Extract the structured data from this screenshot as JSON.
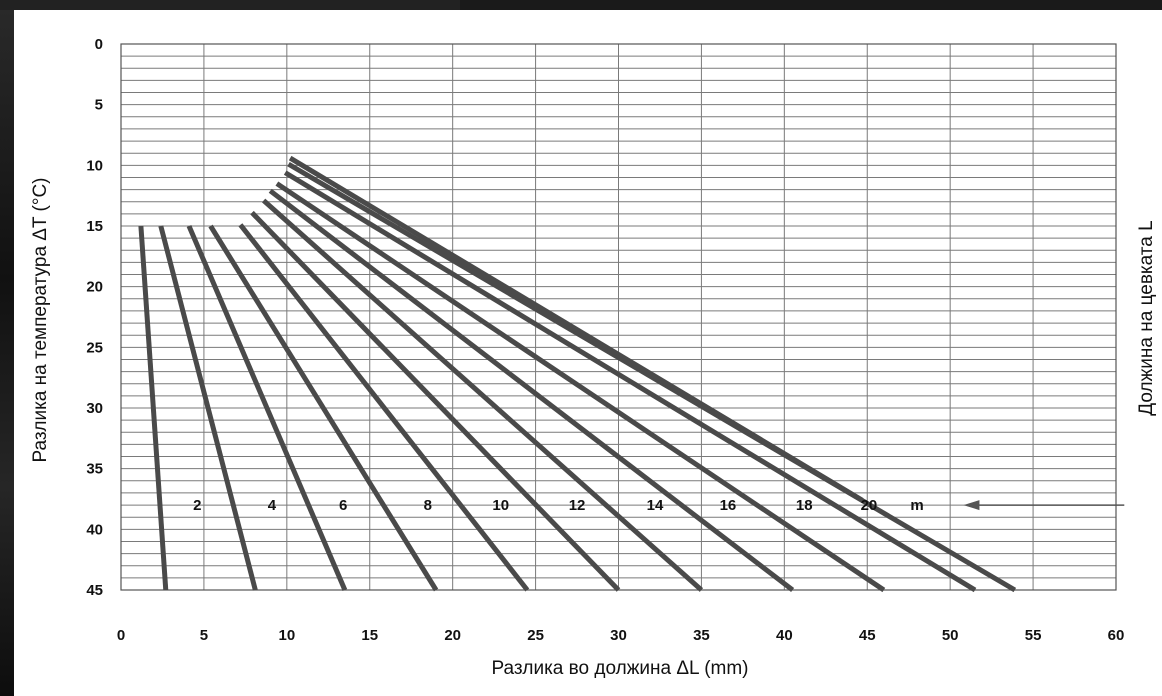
{
  "chart_data": {
    "type": "line",
    "xlabel": "Разлика во должина ΔL (mm)",
    "ylabel": "Разлика на температура ΔT (°C)",
    "right_label": "Должина на цевката L",
    "xlim": [
      0,
      60
    ],
    "ylim": [
      0,
      45
    ],
    "y_inverted": true,
    "x_ticks": [
      "0",
      "5",
      "10",
      "15",
      "20",
      "25",
      "30",
      "35",
      "40",
      "45",
      "50",
      "55",
      "60"
    ],
    "y_ticks": [
      "0",
      "5",
      "10",
      "15",
      "20",
      "25",
      "30",
      "35",
      "40",
      "45"
    ],
    "x_grid_step": 5,
    "y_grid_step": 1,
    "grid": true,
    "line_color": "#4a4a4a",
    "grid_color": "#7a7a7a",
    "series": [
      {
        "name": "2",
        "points": [
          [
            1.2,
            15
          ],
          [
            2.7,
            45
          ]
        ]
      },
      {
        "name": "4",
        "points": [
          [
            2.4,
            15
          ],
          [
            8.1,
            45
          ]
        ]
      },
      {
        "name": "6",
        "points": [
          [
            4.1,
            15
          ],
          [
            13.5,
            45
          ]
        ]
      },
      {
        "name": "8",
        "points": [
          [
            5.4,
            15
          ],
          [
            19.0,
            45
          ]
        ]
      },
      {
        "name": "10",
        "points": [
          [
            7.2,
            14.9
          ],
          [
            24.5,
            45
          ]
        ]
      },
      {
        "name": "12",
        "points": [
          [
            7.9,
            13.9
          ],
          [
            30.0,
            45
          ]
        ]
      },
      {
        "name": "14",
        "points": [
          [
            8.6,
            12.9
          ],
          [
            35.0,
            45
          ]
        ]
      },
      {
        "name": "16",
        "points": [
          [
            9.0,
            12.1
          ],
          [
            40.5,
            45
          ]
        ]
      },
      {
        "name": "18",
        "points": [
          [
            9.4,
            11.5
          ],
          [
            46.0,
            45
          ]
        ]
      },
      {
        "name": "",
        "points": [
          [
            9.9,
            10.6
          ],
          [
            51.5,
            45
          ]
        ]
      },
      {
        "name": "",
        "points": [
          [
            10.1,
            9.9
          ],
          [
            53.9,
            45
          ]
        ]
      },
      {
        "name": "20",
        "points": [
          [
            10.2,
            9.4
          ],
          [
            44.7,
            37.6
          ]
        ]
      }
    ],
    "length_labels": [
      {
        "text": "2",
        "x": 4.6
      },
      {
        "text": "4",
        "x": 9.1
      },
      {
        "text": "6",
        "x": 13.4
      },
      {
        "text": "8",
        "x": 18.5
      },
      {
        "text": "10",
        "x": 22.9
      },
      {
        "text": "12",
        "x": 27.5
      },
      {
        "text": "14",
        "x": 32.2
      },
      {
        "text": "16",
        "x": 36.6
      },
      {
        "text": "18",
        "x": 41.2
      },
      {
        "text": "20",
        "x": 45.1
      },
      {
        "text": "m",
        "x": 48.0
      }
    ],
    "length_label_y": 38,
    "arrow": {
      "from_x": 60.5,
      "to_x": 50.8,
      "y": 38
    }
  }
}
